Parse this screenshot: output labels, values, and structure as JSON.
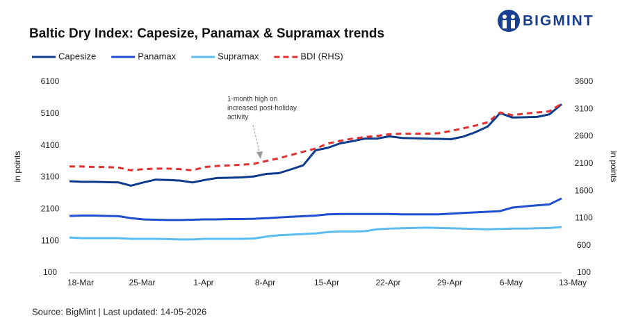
{
  "brand": "BIGMINT",
  "chart_data": {
    "type": "line",
    "title": "Baltic Dry Index: Capesize, Panamax & Supramax trends",
    "y_label": "in points",
    "y2_label": "in points",
    "annotation": [
      "1-month high on",
      "increased post-holiday",
      "activity"
    ],
    "source": "Source: BigMint | Last updated: 14-05-2026",
    "categories": [
      "18-Mar",
      null,
      null,
      null,
      null,
      "25-Mar",
      null,
      null,
      null,
      null,
      "1-Apr",
      null,
      null,
      null,
      null,
      "8-Apr",
      null,
      null,
      null,
      null,
      "15-Apr",
      null,
      null,
      null,
      null,
      "22-Apr",
      null,
      null,
      null,
      null,
      "29-Apr",
      null,
      null,
      null,
      null,
      "6-May",
      null,
      null,
      null,
      null,
      "13-May"
    ],
    "ylim": [
      100,
      6100
    ],
    "yticks": [
      100,
      1100,
      2100,
      3100,
      4100,
      5100,
      6100
    ],
    "y2lim": [
      100,
      3600
    ],
    "y2ticks": [
      100,
      600,
      1100,
      1600,
      2100,
      2600,
      3100,
      3600
    ],
    "grid": false,
    "series": [
      {
        "name": "Capesize",
        "color": "#0d3b8c",
        "dashed": false,
        "values": [
          2980,
          2960,
          2960,
          2950,
          2940,
          2840,
          2940,
          3030,
          3020,
          3000,
          2940,
          3020,
          3080,
          3090,
          3100,
          3130,
          3210,
          3230,
          3350,
          3480,
          3950,
          4030,
          4170,
          4240,
          4320,
          4320,
          4390,
          4340,
          4330,
          4320,
          4310,
          4300,
          4380,
          4520,
          4700,
          5120,
          4980,
          4990,
          5000,
          5080,
          5400
        ]
      },
      {
        "name": "Panamax",
        "color": "#1f4fd0",
        "dashed": false,
        "values": [
          1890,
          1900,
          1900,
          1890,
          1880,
          1820,
          1780,
          1770,
          1760,
          1760,
          1770,
          1780,
          1780,
          1790,
          1790,
          1800,
          1820,
          1840,
          1860,
          1880,
          1900,
          1940,
          1950,
          1950,
          1950,
          1950,
          1950,
          1940,
          1940,
          1940,
          1940,
          1960,
          1980,
          2000,
          2020,
          2040,
          2150,
          2190,
          2220,
          2250,
          2440
        ]
      },
      {
        "name": "Supramax",
        "color": "#5bbcf0",
        "dashed": false,
        "values": [
          1210,
          1190,
          1190,
          1190,
          1190,
          1170,
          1170,
          1170,
          1160,
          1150,
          1150,
          1170,
          1170,
          1170,
          1170,
          1180,
          1240,
          1280,
          1300,
          1320,
          1340,
          1380,
          1400,
          1400,
          1410,
          1470,
          1490,
          1500,
          1510,
          1520,
          1510,
          1500,
          1490,
          1480,
          1470,
          1480,
          1490,
          1490,
          1500,
          1510,
          1540
        ]
      },
      {
        "name": "BDI (RHS)",
        "color": "#e03030",
        "dashed": true,
        "axis": "y2",
        "values": [
          2050,
          2050,
          2040,
          2040,
          2030,
          1980,
          2000,
          2010,
          2010,
          2000,
          1980,
          2040,
          2060,
          2070,
          2080,
          2100,
          2150,
          2200,
          2260,
          2320,
          2380,
          2470,
          2520,
          2560,
          2590,
          2610,
          2640,
          2650,
          2650,
          2650,
          2660,
          2700,
          2750,
          2800,
          2860,
          3040,
          2990,
          3020,
          3040,
          3060,
          3200
        ]
      }
    ]
  }
}
